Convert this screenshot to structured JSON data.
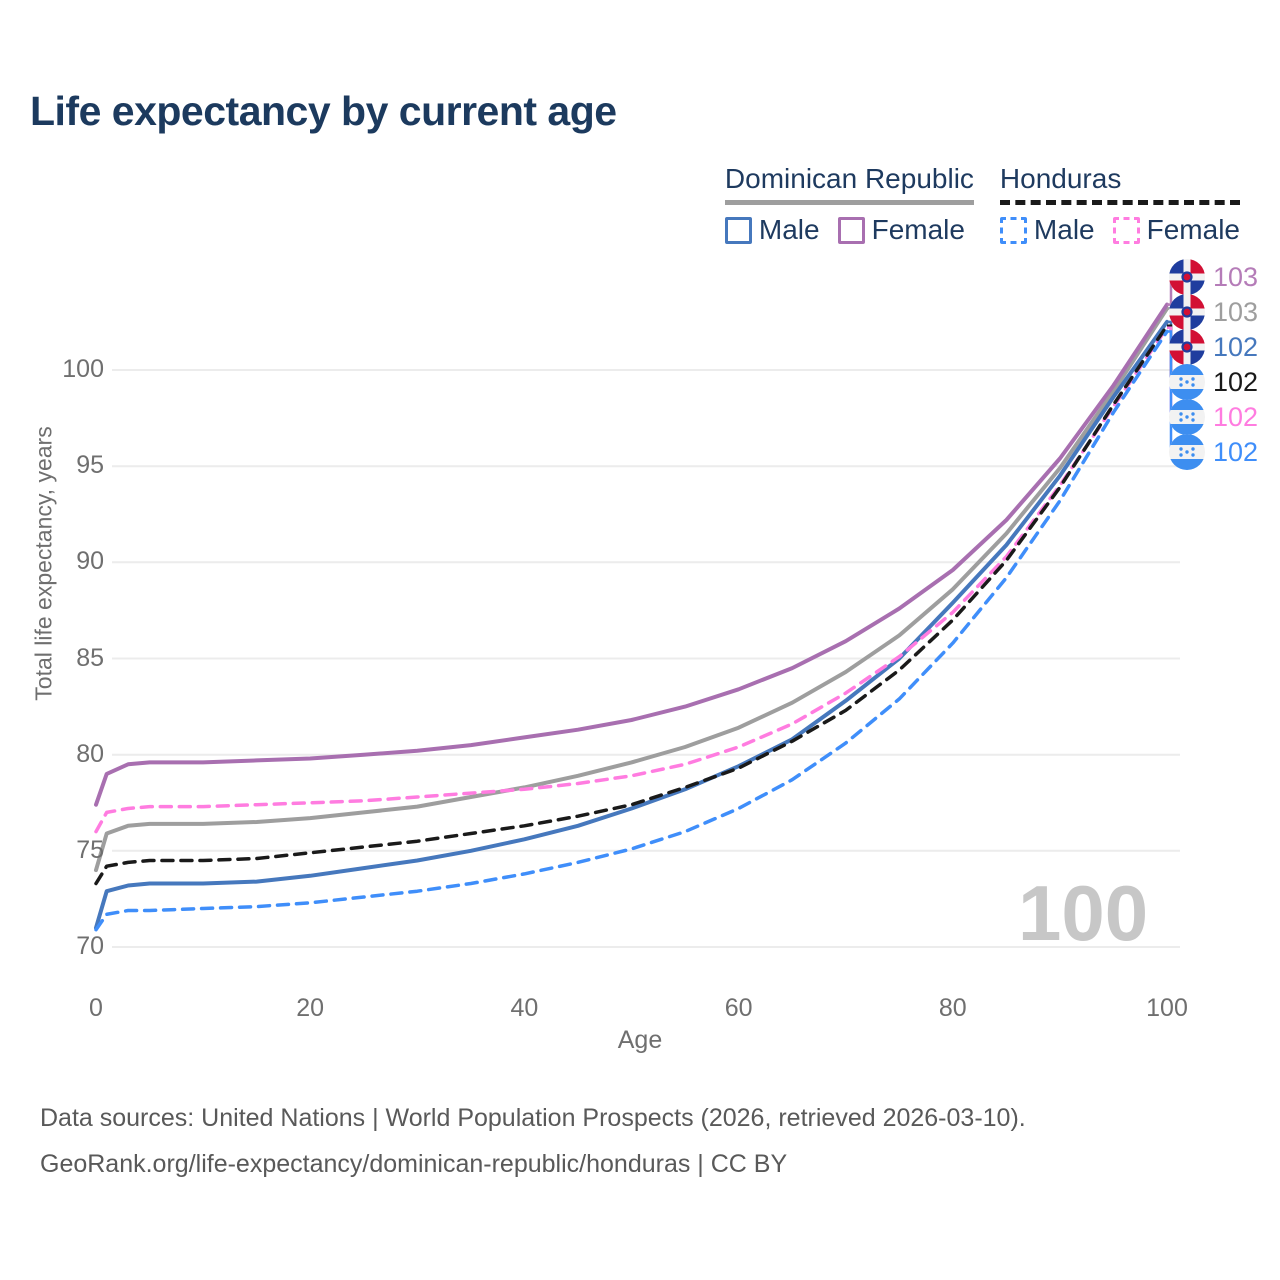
{
  "page": {
    "title": "Life expectancy by current age"
  },
  "legend": {
    "groups": [
      {
        "key": "dominican-republic",
        "label": "Dominican Republic",
        "underline_style": "solid",
        "underline_color": "#9e9e9e",
        "items": [
          {
            "key": "dr-male",
            "label": "Male",
            "swatch_color": "#4678bd",
            "swatch_style": "solid"
          },
          {
            "key": "dr-female",
            "label": "Female",
            "swatch_color": "#a86fb0",
            "swatch_style": "solid"
          }
        ]
      },
      {
        "key": "honduras",
        "label": "Honduras",
        "underline_style": "dashed",
        "underline_color": "#1a1a1a",
        "items": [
          {
            "key": "hn-male",
            "label": "Male",
            "swatch_color": "#3f8efa",
            "swatch_style": "dashed"
          },
          {
            "key": "hn-female",
            "label": "Female",
            "swatch_color": "#ff7ce0",
            "swatch_style": "dashed"
          }
        ]
      }
    ]
  },
  "chart_data": {
    "type": "line",
    "title": "Life expectancy by current age",
    "xlabel": "Age",
    "ylabel": "Total life expectancy, years",
    "xlim": [
      0,
      100
    ],
    "ylim": [
      70,
      104
    ],
    "x_ticks": [
      0,
      20,
      40,
      60,
      80,
      100
    ],
    "y_ticks": [
      70,
      75,
      80,
      85,
      90,
      95,
      100
    ],
    "grid": "horizontal",
    "legend_position": "top-right",
    "age_watermark": "100",
    "ages": [
      0,
      1,
      3,
      5,
      10,
      15,
      20,
      25,
      30,
      35,
      40,
      45,
      50,
      55,
      60,
      65,
      70,
      75,
      80,
      85,
      90,
      95,
      100
    ],
    "series": [
      {
        "key": "dr-female",
        "name": "Dominican Republic Female",
        "color": "#a86fb0",
        "dash": "solid",
        "values": [
          77.4,
          79.0,
          79.5,
          79.6,
          79.6,
          79.7,
          79.8,
          80.0,
          80.2,
          80.5,
          80.9,
          81.3,
          81.8,
          82.5,
          83.4,
          84.5,
          85.9,
          87.6,
          89.6,
          92.2,
          95.4,
          99.2,
          103.4
        ]
      },
      {
        "key": "dr-all",
        "name": "Dominican Republic",
        "color": "#9e9e9e",
        "dash": "solid",
        "values": [
          74.0,
          75.9,
          76.3,
          76.4,
          76.4,
          76.5,
          76.7,
          77.0,
          77.3,
          77.8,
          78.3,
          78.9,
          79.6,
          80.4,
          81.4,
          82.7,
          84.3,
          86.2,
          88.6,
          91.5,
          94.9,
          98.9,
          103.2
        ]
      },
      {
        "key": "dr-male",
        "name": "Dominican Republic Male",
        "color": "#4678bd",
        "dash": "solid",
        "values": [
          71.0,
          72.9,
          73.2,
          73.3,
          73.3,
          73.4,
          73.7,
          74.1,
          74.5,
          75.0,
          75.6,
          76.3,
          77.2,
          78.2,
          79.4,
          80.8,
          82.8,
          85.0,
          87.9,
          90.9,
          94.5,
          98.6,
          102.5
        ]
      },
      {
        "key": "hn-all",
        "name": "Honduras",
        "color": "#1a1a1a",
        "dash": "dashed",
        "values": [
          73.3,
          74.2,
          74.4,
          74.5,
          74.5,
          74.6,
          74.9,
          75.2,
          75.5,
          75.9,
          76.3,
          76.8,
          77.4,
          78.3,
          79.3,
          80.7,
          82.3,
          84.4,
          87.0,
          90.1,
          93.9,
          98.2,
          102.3
        ]
      },
      {
        "key": "hn-female",
        "name": "Honduras Female",
        "color": "#ff7ce0",
        "dash": "dashed",
        "values": [
          76.0,
          77.0,
          77.2,
          77.3,
          77.3,
          77.4,
          77.5,
          77.6,
          77.8,
          78.0,
          78.2,
          78.5,
          78.9,
          79.5,
          80.4,
          81.6,
          83.2,
          85.1,
          87.4,
          90.3,
          94.0,
          98.1,
          102.2
        ]
      },
      {
        "key": "hn-male",
        "name": "Honduras Male",
        "color": "#3f8efa",
        "dash": "dashed",
        "values": [
          70.9,
          71.7,
          71.9,
          71.9,
          72.0,
          72.1,
          72.3,
          72.6,
          72.9,
          73.3,
          73.8,
          74.4,
          75.1,
          76.0,
          77.2,
          78.7,
          80.6,
          82.9,
          85.8,
          89.2,
          93.2,
          97.8,
          102.0
        ]
      }
    ],
    "end_labels": [
      {
        "series": "dr-female",
        "value": "103",
        "color": "#b57cb8",
        "flag": "dominican-republic"
      },
      {
        "series": "dr-all",
        "value": "103",
        "color": "#9e9e9e",
        "flag": "dominican-republic"
      },
      {
        "series": "dr-male",
        "value": "102",
        "color": "#4678bd",
        "flag": "dominican-republic"
      },
      {
        "series": "hn-all",
        "value": "102",
        "color": "#1a1a1a",
        "flag": "honduras"
      },
      {
        "series": "hn-female",
        "value": "102",
        "color": "#ff7ce0",
        "flag": "honduras"
      },
      {
        "series": "hn-male",
        "value": "102",
        "color": "#3f8efa",
        "flag": "honduras"
      }
    ]
  },
  "footer": {
    "line1": "Data sources: United Nations | World Population Prospects (2026, retrieved 2026-03-10).",
    "line2": "GeoRank.org/life-expectancy/dominican-republic/honduras | CC BY"
  },
  "colors": {
    "title_text": "#1c3a5e",
    "legend_text": "#1e3a5f",
    "axis_text": "#6f6f6f",
    "gridline": "#ececec",
    "footer_text": "#595959",
    "watermark": "#c7c7c7"
  }
}
